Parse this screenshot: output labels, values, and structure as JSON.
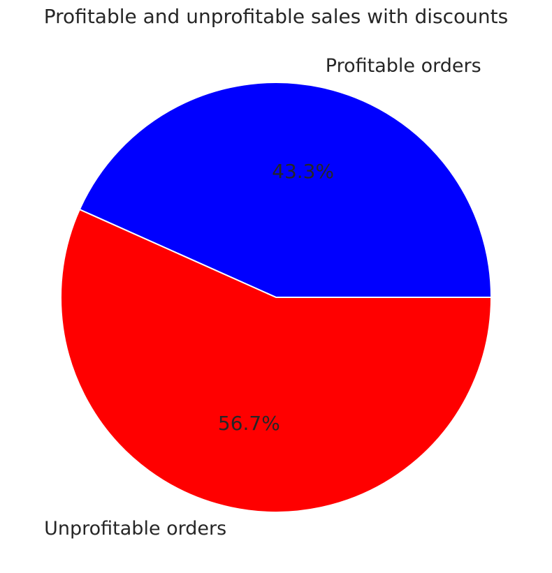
{
  "chart_data": {
    "type": "pie",
    "title": "Profitable and unprofitable sales with discounts",
    "slices": [
      {
        "label": "Profitable orders",
        "value": 43.3,
        "pct_label": "43.3%",
        "color": "#0000ff"
      },
      {
        "label": "Unprofitable orders",
        "value": 56.7,
        "pct_label": "56.7%",
        "color": "#ff0000"
      }
    ],
    "start_angle_deg": 0,
    "direction": "counterclockwise",
    "wedge_edge_color": "#ffffff"
  }
}
